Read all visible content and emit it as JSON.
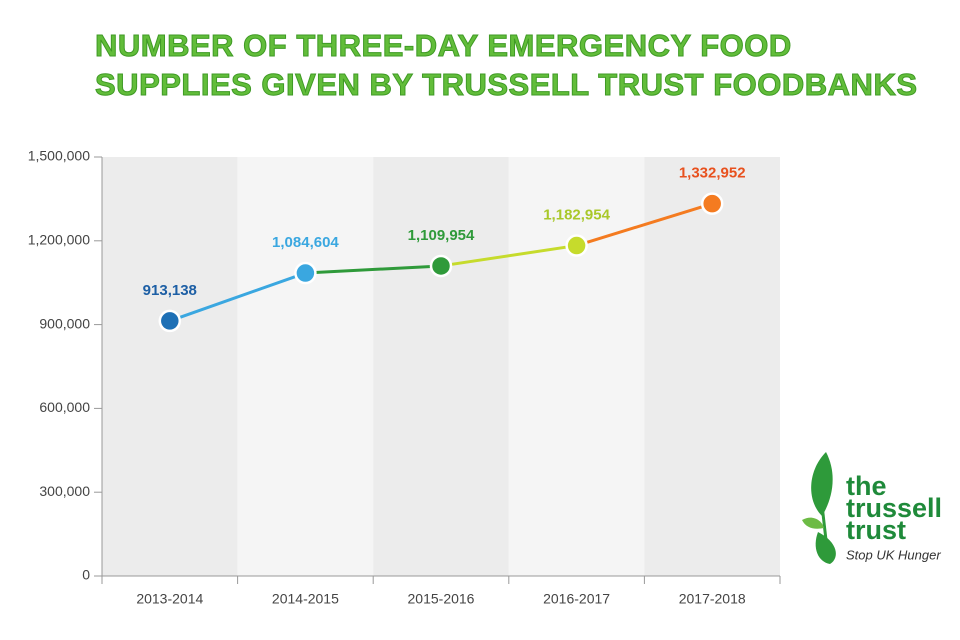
{
  "chart_data": {
    "type": "line",
    "title": [
      "NUMBER OF THREE-DAY EMERGENCY FOOD",
      "SUPPLIES GIVEN BY TRUSSELL TRUST FOODBANKS"
    ],
    "categories": [
      "2013-2014",
      "2014-2015",
      "2015-2016",
      "2016-2017",
      "2017-2018"
    ],
    "values": [
      913138,
      1084604,
      1109954,
      1182954,
      1332952
    ],
    "value_labels": [
      "913,138",
      "1,084,604",
      "1,109,954",
      "1,182,954",
      "1,332,952"
    ],
    "colors": [
      "#1d6fb5",
      "#3aa7e0",
      "#2f9a3a",
      "#c6db2c",
      "#f47b20"
    ],
    "label_colors": [
      "#1d5fa5",
      "#3aa7e0",
      "#2f9a3a",
      "#a9c82a",
      "#e8511e"
    ],
    "band_colors": [
      "#ececec",
      "#f5f5f5"
    ],
    "ylim": [
      0,
      1500000
    ],
    "yticks": [
      0,
      {
        "value": 300000,
        "label": "300,000"
      },
      {
        "value": 600000,
        "label": "600,000"
      },
      {
        "value": 900000,
        "label": "900,000"
      },
      {
        "value": 1200000,
        "label": "1,200,000"
      },
      {
        "value": 1500000,
        "label": "1,500,000"
      }
    ]
  },
  "logo": {
    "lines": [
      "the",
      "trussell",
      "trust"
    ],
    "tagline": "Stop UK Hunger"
  }
}
